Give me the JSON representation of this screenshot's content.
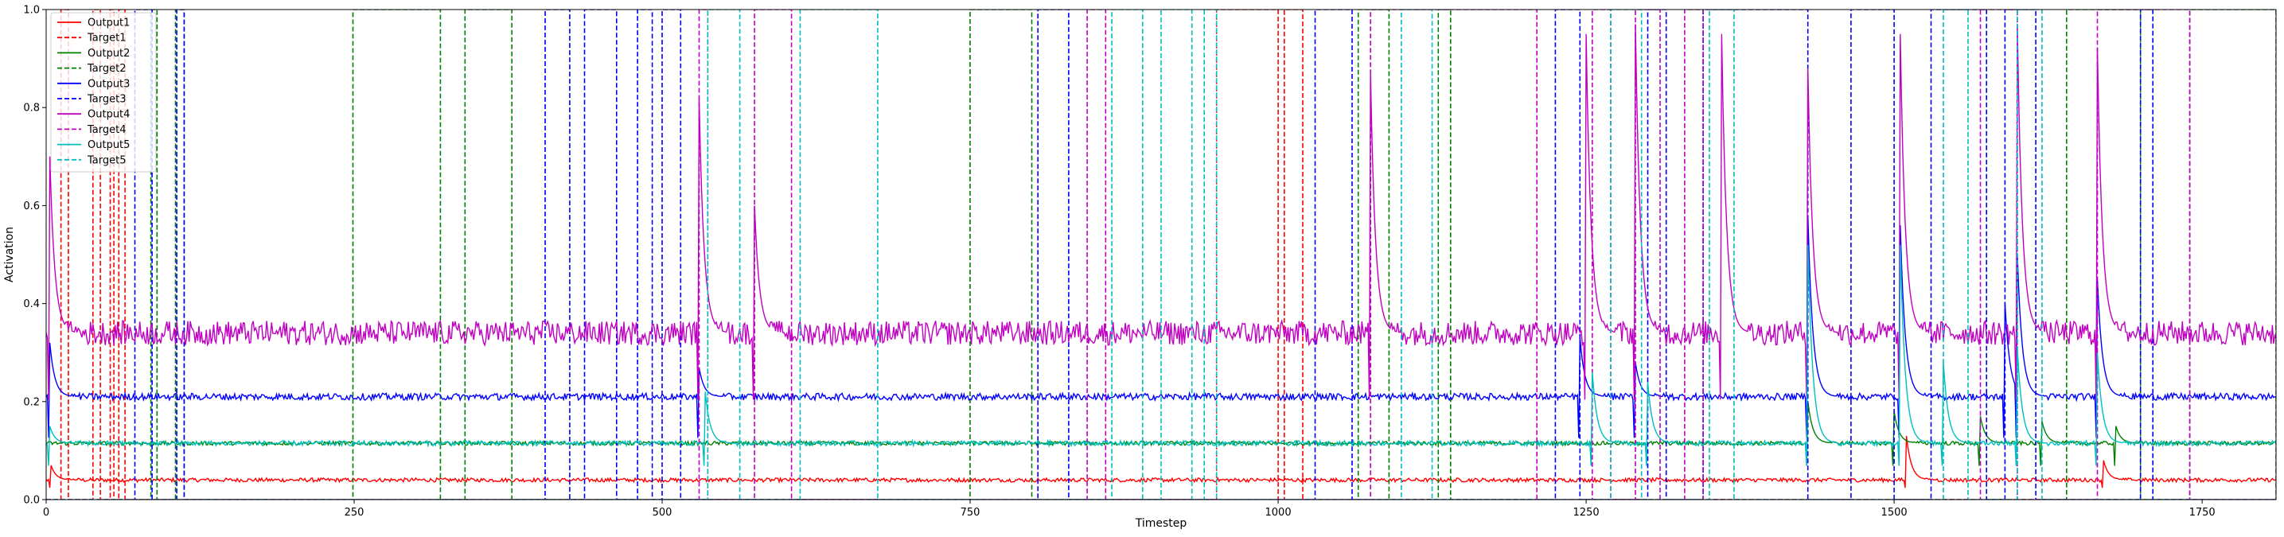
{
  "chart_data": {
    "type": "line",
    "title": "",
    "xlabel": "Timestep",
    "ylabel": "Activation",
    "xlim": [
      0,
      1810
    ],
    "ylim": [
      0,
      1.0
    ],
    "xticks": [
      0,
      250,
      500,
      750,
      1000,
      1250,
      1500,
      1750
    ],
    "yticks": [
      0.0,
      0.2,
      0.4,
      0.6,
      0.8,
      1.0
    ],
    "xtick_labels": [
      "0",
      "250",
      "500",
      "750",
      "1000",
      "1250",
      "1500",
      "1750"
    ],
    "ytick_labels": [
      "0.0",
      "0.2",
      "0.4",
      "0.6",
      "0.8",
      "1.0"
    ],
    "grid": false,
    "legend_position": "top-left",
    "series": [
      {
        "name": "Output1",
        "color": "#ff0000",
        "style": "solid",
        "baseline": 0.04,
        "noise": 0.004,
        "spikes": [
          [
            4,
            0.07
          ],
          [
            1510,
            0.13
          ],
          [
            1670,
            0.08
          ]
        ]
      },
      {
        "name": "Target1",
        "color": "#ff0000",
        "style": "dashed",
        "intervals": [
          [
            12,
            18
          ],
          [
            38,
            44
          ],
          [
            52,
            55
          ],
          [
            59,
            64
          ],
          [
            950,
            1000
          ],
          [
            1005,
            1020
          ]
        ]
      },
      {
        "name": "Output2",
        "color": "#008000",
        "style": "solid",
        "baseline": 0.115,
        "noise": 0.004,
        "spikes": [
          [
            1430,
            0.2
          ],
          [
            1500,
            0.18
          ],
          [
            1570,
            0.17
          ],
          [
            1620,
            0.16
          ],
          [
            1680,
            0.15
          ]
        ]
      },
      {
        "name": "Target2",
        "color": "#008000",
        "style": "dashed",
        "intervals": [
          [
            85,
            90
          ],
          [
            105,
            112
          ],
          [
            249,
            320
          ],
          [
            340,
            378
          ],
          [
            750,
            800
          ],
          [
            1065,
            1090
          ],
          [
            1130,
            1140
          ],
          [
            1640,
            1700
          ],
          [
            1740,
            1810
          ]
        ]
      },
      {
        "name": "Output3",
        "color": "#0000ff",
        "style": "solid",
        "baseline": 0.21,
        "noise": 0.007,
        "spikes": [
          [
            3,
            0.32
          ],
          [
            530,
            0.27
          ],
          [
            1245,
            0.33
          ],
          [
            1290,
            0.28
          ],
          [
            1430,
            0.58
          ],
          [
            1505,
            0.56
          ],
          [
            1590,
            0.4
          ],
          [
            1600,
            0.5
          ],
          [
            1665,
            0.45
          ]
        ]
      },
      {
        "name": "Target3",
        "color": "#0000ff",
        "style": "dashed",
        "intervals": [
          [
            72,
            86
          ],
          [
            106,
            112
          ],
          [
            405,
            425
          ],
          [
            437,
            463
          ],
          [
            480,
            492
          ],
          [
            500,
            515
          ],
          [
            805,
            830
          ],
          [
            1030,
            1060
          ],
          [
            1225,
            1245
          ],
          [
            1300,
            1315
          ],
          [
            1345,
            1430
          ],
          [
            1465,
            1500
          ],
          [
            1530,
            1575
          ],
          [
            1590,
            1615
          ],
          [
            1700,
            1710
          ]
        ]
      },
      {
        "name": "Output4",
        "color": "#c000c0",
        "style": "solid",
        "baseline": 0.34,
        "noise": 0.025,
        "spikes": [
          [
            3,
            0.7
          ],
          [
            530,
            0.82
          ],
          [
            575,
            0.6
          ],
          [
            1075,
            0.87
          ],
          [
            1250,
            0.95
          ],
          [
            1290,
            0.97
          ],
          [
            1360,
            0.95
          ],
          [
            1430,
            0.88
          ],
          [
            1505,
            0.95
          ],
          [
            1600,
            0.97
          ],
          [
            1665,
            0.92
          ]
        ]
      },
      {
        "name": "Target4",
        "color": "#c000c0",
        "style": "dashed",
        "intervals": [
          [
            530,
            537
          ],
          [
            575,
            605
          ],
          [
            845,
            860
          ],
          [
            1075,
            1210
          ],
          [
            1255,
            1270
          ],
          [
            1290,
            1310
          ],
          [
            1330,
            1345
          ],
          [
            1570,
            1600
          ],
          [
            1665,
            1740
          ]
        ]
      },
      {
        "name": "Output5",
        "color": "#00bfbf",
        "style": "solid",
        "baseline": 0.115,
        "noise": 0.005,
        "spikes": [
          [
            3,
            0.15
          ],
          [
            535,
            0.22
          ],
          [
            1255,
            0.26
          ],
          [
            1300,
            0.24
          ],
          [
            1430,
            0.52
          ],
          [
            1505,
            0.52
          ],
          [
            1540,
            0.28
          ],
          [
            1600,
            0.31
          ],
          [
            1665,
            0.3
          ]
        ]
      },
      {
        "name": "Target5",
        "color": "#00bfbf",
        "style": "dashed",
        "intervals": [
          [
            537,
            563
          ],
          [
            612,
            675
          ],
          [
            865,
            890
          ],
          [
            905,
            930
          ],
          [
            940,
            950
          ],
          [
            1100,
            1125
          ],
          [
            1270,
            1295
          ],
          [
            1350,
            1370
          ],
          [
            1540,
            1560
          ],
          [
            1600,
            1620
          ]
        ]
      }
    ]
  }
}
